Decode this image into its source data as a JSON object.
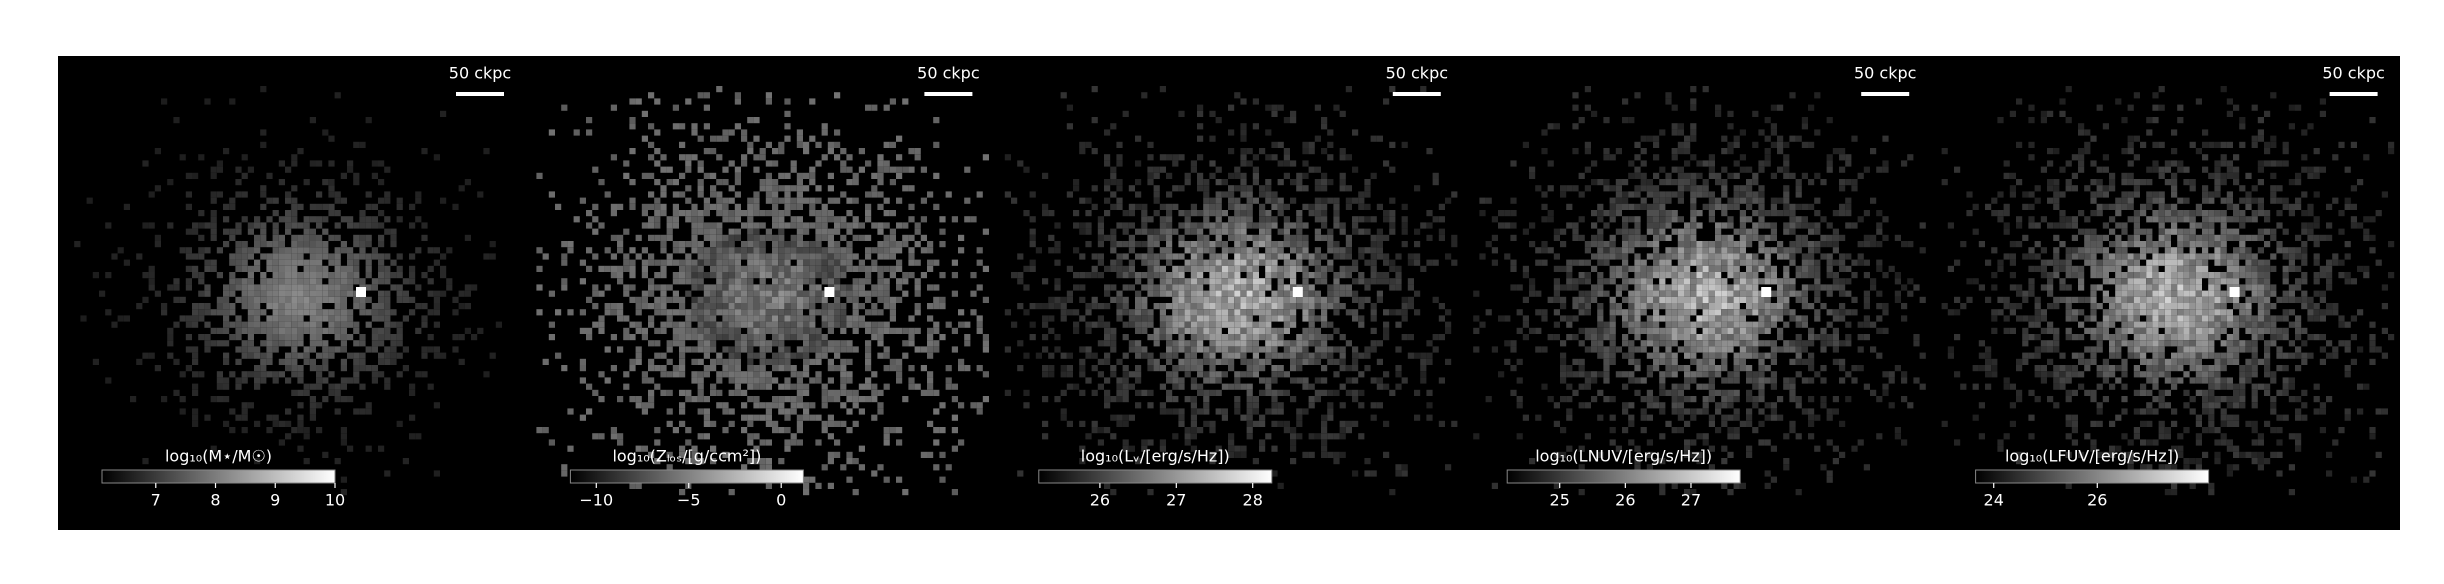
{
  "chart_data": [
    {
      "type": "heatmap",
      "scale_label": "50 ckpc",
      "colorbar_label": "log₁₀(M⋆/M☉)",
      "clim": [
        6.1,
        10
      ],
      "cticks": [
        7,
        8,
        9,
        10
      ],
      "colormap": "gray"
    },
    {
      "type": "heatmap",
      "scale_label": "50 ckpc",
      "colorbar_label": "log₁₀(Zₗₒₛ/[g/ccm²])",
      "clim": [
        -11.4,
        1.2
      ],
      "cticks": [
        {
          "value": -10,
          "label": "−10"
        },
        {
          "value": -5,
          "label": "−5"
        },
        0
      ],
      "colormap": "gray"
    },
    {
      "type": "heatmap",
      "scale_label": "50 ckpc",
      "colorbar_label": "log₁₀(Lᵥ/[erg/s/Hz])",
      "clim": [
        25.2,
        28.25
      ],
      "cticks": [
        26,
        27,
        28
      ],
      "colormap": "gray"
    },
    {
      "type": "heatmap",
      "scale_label": "50 ckpc",
      "colorbar_label": "log₁₀(LNUV/[erg/s/Hz])",
      "clim": [
        24.2,
        27.75
      ],
      "cticks": [
        25,
        26,
        27
      ],
      "colormap": "gray"
    },
    {
      "type": "heatmap",
      "scale_label": "50 ckpc",
      "colorbar_label": "log₁₀(LFUV/[erg/s/Hz])",
      "clim": [
        23.65,
        28.15
      ],
      "cticks": [
        24,
        26
      ],
      "colormap": "gray"
    }
  ]
}
